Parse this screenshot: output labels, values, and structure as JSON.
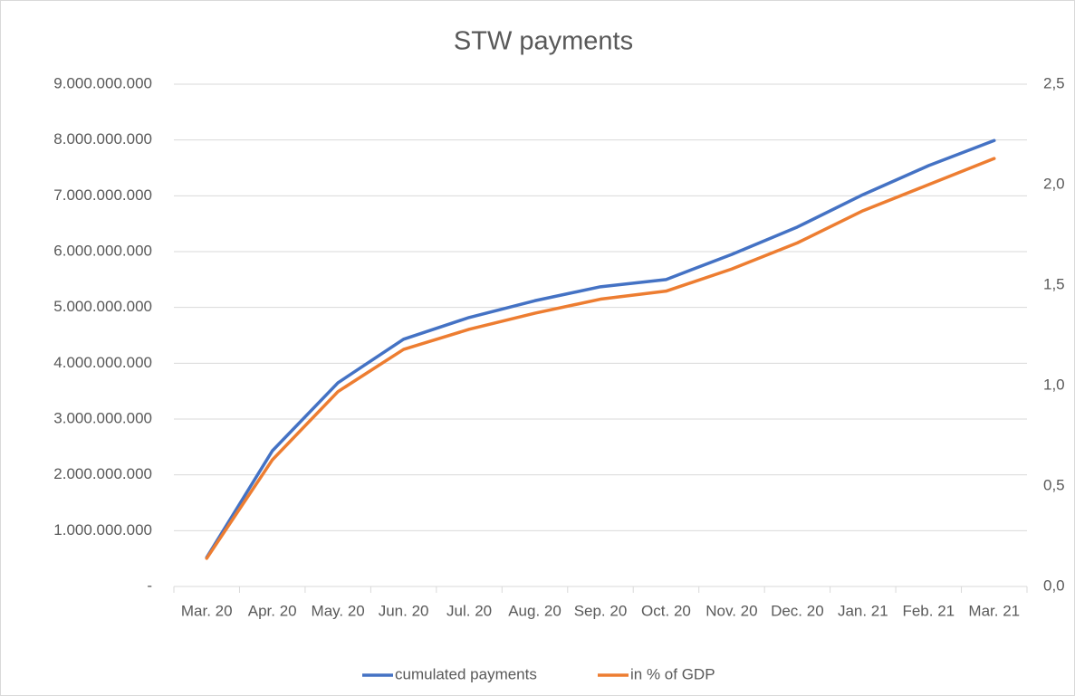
{
  "chart_data": {
    "type": "line",
    "title": "STW payments",
    "categories": [
      "Mar. 20",
      "Apr. 20",
      "May. 20",
      "Jun. 20",
      "Jul. 20",
      "Aug. 20",
      "Sep. 20",
      "Oct. 20",
      "Nov. 20",
      "Dec. 20",
      "Jan. 21",
      "Feb. 21",
      "Mar. 21"
    ],
    "series": [
      {
        "name": "cumulated payments",
        "color": "#4472c4",
        "values": [
          520000000,
          2430000000,
          3650000000,
          4430000000,
          4820000000,
          5120000000,
          5370000000,
          5500000000,
          5950000000,
          6440000000,
          7020000000,
          7540000000,
          7990000000
        ]
      },
      {
        "name": "in % of GDP",
        "color": "#ed7d31",
        "axis": "y2",
        "values": [
          0.14,
          0.63,
          0.97,
          1.18,
          1.28,
          1.36,
          1.43,
          1.47,
          1.58,
          1.71,
          1.87,
          2.0,
          2.13
        ]
      }
    ],
    "ylim": [
      0,
      9000000000
    ],
    "yticks": [
      {
        "value": 0,
        "label": "-"
      },
      {
        "value": 1000000000,
        "label": "1.000.000.000"
      },
      {
        "value": 2000000000,
        "label": "2.000.000.000"
      },
      {
        "value": 3000000000,
        "label": "3.000.000.000"
      },
      {
        "value": 4000000000,
        "label": "4.000.000.000"
      },
      {
        "value": 5000000000,
        "label": "5.000.000.000"
      },
      {
        "value": 6000000000,
        "label": "6.000.000.000"
      },
      {
        "value": 7000000000,
        "label": "7.000.000.000"
      },
      {
        "value": 8000000000,
        "label": "8.000.000.000"
      },
      {
        "value": 9000000000,
        "label": "9.000.000.000"
      }
    ],
    "y2lim": [
      0,
      2.5
    ],
    "y2ticks": [
      {
        "value": 0,
        "label": "0,0"
      },
      {
        "value": 0.5,
        "label": "0,5"
      },
      {
        "value": 1,
        "label": "1,0"
      },
      {
        "value": 1.5,
        "label": "1,5"
      },
      {
        "value": 2,
        "label": "2,0"
      },
      {
        "value": 2.5,
        "label": "2,5"
      }
    ],
    "grid": true,
    "legend": "bottom"
  }
}
